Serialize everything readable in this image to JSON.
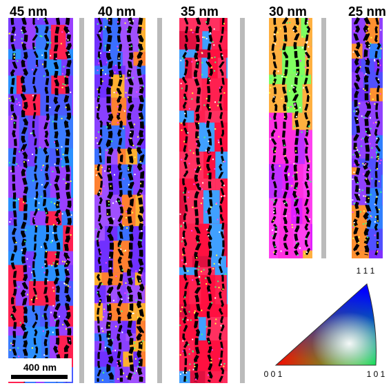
{
  "panels": [
    {
      "label": "45 nm"
    },
    {
      "label": "40 nm"
    },
    {
      "label": "35 nm"
    },
    {
      "label": "30 nm"
    },
    {
      "label": "25 nm"
    }
  ],
  "scale_bar": {
    "label": "400 nm"
  },
  "legend": {
    "top": "1 1 1",
    "left": "0 0 1",
    "right": "1 0 1"
  }
}
